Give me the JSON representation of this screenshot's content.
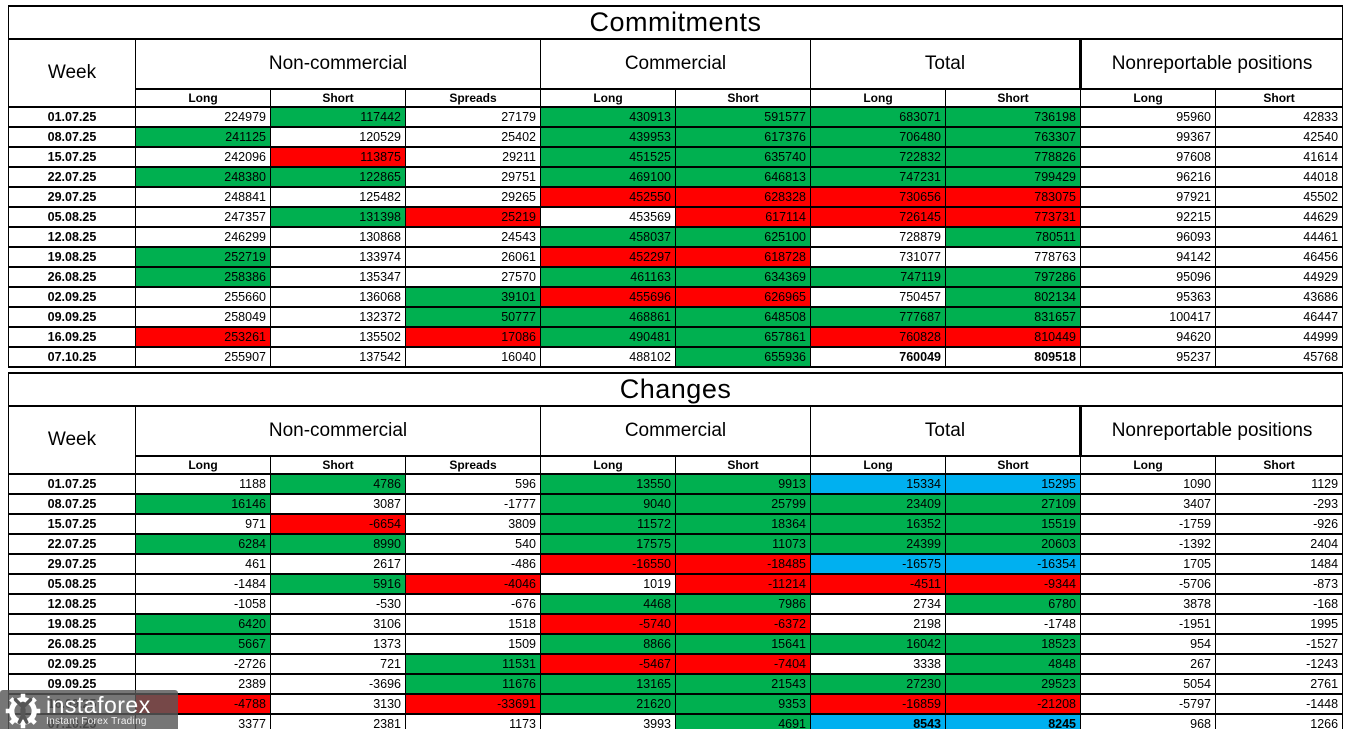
{
  "colors": {
    "green": "#00B050",
    "red": "#FF0000",
    "blue": "#00B0F0",
    "grid": "#000000",
    "watermark_bg": "rgba(88,88,88,0.82)"
  },
  "headers": {
    "week": "Week",
    "groups": [
      {
        "label": "Non-commercial",
        "span": 3
      },
      {
        "label": "Commercial",
        "span": 2
      },
      {
        "label": "Total",
        "span": 2
      },
      {
        "label": "Nonreportable positions",
        "span": 2
      }
    ],
    "sub": [
      "Long",
      "Short",
      "Spreads",
      "Long",
      "Short",
      "Long",
      "Short",
      "Long",
      "Short"
    ]
  },
  "watermark": {
    "brand": "instaforex",
    "tagline": "Instant Forex Trading"
  },
  "chart_data": [
    {
      "type": "table",
      "title": "Commitments",
      "columns": [
        "Week",
        "Non-commercial Long",
        "Non-commercial Short",
        "Non-commercial Spreads",
        "Commercial Long",
        "Commercial Short",
        "Total Long",
        "Total Short",
        "Nonreportable Long",
        "Nonreportable Short"
      ],
      "cell_color_legend": {
        "w": "white",
        "g": "green",
        "r": "red",
        "b": "blue"
      },
      "rows": [
        {
          "week": "01.07.25",
          "cells": [
            [
              224979,
              "w"
            ],
            [
              117442,
              "g"
            ],
            [
              27179,
              "w"
            ],
            [
              430913,
              "g"
            ],
            [
              591577,
              "g"
            ],
            [
              683071,
              "g"
            ],
            [
              736198,
              "g"
            ],
            [
              95960,
              "w"
            ],
            [
              42833,
              "w"
            ]
          ]
        },
        {
          "week": "08.07.25",
          "cells": [
            [
              241125,
              "g"
            ],
            [
              120529,
              "w"
            ],
            [
              25402,
              "w"
            ],
            [
              439953,
              "g"
            ],
            [
              617376,
              "g"
            ],
            [
              706480,
              "g"
            ],
            [
              763307,
              "g"
            ],
            [
              99367,
              "w"
            ],
            [
              42540,
              "w"
            ]
          ]
        },
        {
          "week": "15.07.25",
          "cells": [
            [
              242096,
              "w"
            ],
            [
              113875,
              "r"
            ],
            [
              29211,
              "w"
            ],
            [
              451525,
              "g"
            ],
            [
              635740,
              "g"
            ],
            [
              722832,
              "g"
            ],
            [
              778826,
              "g"
            ],
            [
              97608,
              "w"
            ],
            [
              41614,
              "w"
            ]
          ]
        },
        {
          "week": "22.07.25",
          "cells": [
            [
              248380,
              "g"
            ],
            [
              122865,
              "g"
            ],
            [
              29751,
              "w"
            ],
            [
              469100,
              "g"
            ],
            [
              646813,
              "g"
            ],
            [
              747231,
              "g"
            ],
            [
              799429,
              "g"
            ],
            [
              96216,
              "w"
            ],
            [
              44018,
              "w"
            ]
          ]
        },
        {
          "week": "29.07.25",
          "cells": [
            [
              248841,
              "w"
            ],
            [
              125482,
              "w"
            ],
            [
              29265,
              "w"
            ],
            [
              452550,
              "r"
            ],
            [
              628328,
              "r"
            ],
            [
              730656,
              "r"
            ],
            [
              783075,
              "r"
            ],
            [
              97921,
              "w"
            ],
            [
              45502,
              "w"
            ]
          ]
        },
        {
          "week": "05.08.25",
          "cells": [
            [
              247357,
              "w"
            ],
            [
              131398,
              "g"
            ],
            [
              25219,
              "r"
            ],
            [
              453569,
              "w"
            ],
            [
              617114,
              "r"
            ],
            [
              726145,
              "r"
            ],
            [
              773731,
              "r"
            ],
            [
              92215,
              "w"
            ],
            [
              44629,
              "w"
            ]
          ]
        },
        {
          "week": "12.08.25",
          "cells": [
            [
              246299,
              "w"
            ],
            [
              130868,
              "w"
            ],
            [
              24543,
              "w"
            ],
            [
              458037,
              "g"
            ],
            [
              625100,
              "g"
            ],
            [
              728879,
              "w"
            ],
            [
              780511,
              "g"
            ],
            [
              96093,
              "w"
            ],
            [
              44461,
              "w"
            ]
          ]
        },
        {
          "week": "19.08.25",
          "cells": [
            [
              252719,
              "g"
            ],
            [
              133974,
              "w"
            ],
            [
              26061,
              "w"
            ],
            [
              452297,
              "r"
            ],
            [
              618728,
              "r"
            ],
            [
              731077,
              "w"
            ],
            [
              778763,
              "w"
            ],
            [
              94142,
              "w"
            ],
            [
              46456,
              "w"
            ]
          ]
        },
        {
          "week": "26.08.25",
          "cells": [
            [
              258386,
              "g"
            ],
            [
              135347,
              "w"
            ],
            [
              27570,
              "w"
            ],
            [
              461163,
              "g"
            ],
            [
              634369,
              "g"
            ],
            [
              747119,
              "g"
            ],
            [
              797286,
              "g"
            ],
            [
              95096,
              "w"
            ],
            [
              44929,
              "w"
            ]
          ]
        },
        {
          "week": "02.09.25",
          "cells": [
            [
              255660,
              "w"
            ],
            [
              136068,
              "w"
            ],
            [
              39101,
              "g"
            ],
            [
              455696,
              "r"
            ],
            [
              626965,
              "r"
            ],
            [
              750457,
              "w"
            ],
            [
              802134,
              "g"
            ],
            [
              95363,
              "w"
            ],
            [
              43686,
              "w"
            ]
          ]
        },
        {
          "week": "09.09.25",
          "cells": [
            [
              258049,
              "w"
            ],
            [
              132372,
              "w"
            ],
            [
              50777,
              "g"
            ],
            [
              468861,
              "g"
            ],
            [
              648508,
              "g"
            ],
            [
              777687,
              "g"
            ],
            [
              831657,
              "g"
            ],
            [
              100417,
              "w"
            ],
            [
              46447,
              "w"
            ]
          ]
        },
        {
          "week": "16.09.25",
          "cells": [
            [
              253261,
              "r"
            ],
            [
              135502,
              "w"
            ],
            [
              17086,
              "r"
            ],
            [
              490481,
              "g"
            ],
            [
              657861,
              "g"
            ],
            [
              760828,
              "r"
            ],
            [
              810449,
              "r"
            ],
            [
              94620,
              "w"
            ],
            [
              44999,
              "w"
            ]
          ]
        },
        {
          "week": "07.10.25",
          "cells": [
            [
              255907,
              "w"
            ],
            [
              137542,
              "w"
            ],
            [
              16040,
              "w"
            ],
            [
              488102,
              "w"
            ],
            [
              655936,
              "g"
            ],
            [
              760049,
              "w",
              1
            ],
            [
              809518,
              "w",
              1
            ],
            [
              95237,
              "w"
            ],
            [
              45768,
              "w"
            ]
          ]
        }
      ]
    },
    {
      "type": "table",
      "title": "Changes",
      "columns": [
        "Week",
        "Non-commercial Long",
        "Non-commercial Short",
        "Non-commercial Spreads",
        "Commercial Long",
        "Commercial Short",
        "Total Long",
        "Total Short",
        "Nonreportable Long",
        "Nonreportable Short"
      ],
      "cell_color_legend": {
        "w": "white",
        "g": "green",
        "r": "red",
        "b": "blue"
      },
      "rows": [
        {
          "week": "01.07.25",
          "cells": [
            [
              1188,
              "w"
            ],
            [
              4786,
              "g"
            ],
            [
              596,
              "w"
            ],
            [
              13550,
              "g"
            ],
            [
              9913,
              "g"
            ],
            [
              15334,
              "b"
            ],
            [
              15295,
              "b"
            ],
            [
              1090,
              "w"
            ],
            [
              1129,
              "w"
            ]
          ]
        },
        {
          "week": "08.07.25",
          "cells": [
            [
              16146,
              "g"
            ],
            [
              3087,
              "w"
            ],
            [
              -1777,
              "w"
            ],
            [
              9040,
              "g"
            ],
            [
              25799,
              "g"
            ],
            [
              23409,
              "g"
            ],
            [
              27109,
              "g"
            ],
            [
              3407,
              "w"
            ],
            [
              -293,
              "w"
            ]
          ]
        },
        {
          "week": "15.07.25",
          "cells": [
            [
              971,
              "w"
            ],
            [
              -6654,
              "r"
            ],
            [
              3809,
              "w"
            ],
            [
              11572,
              "g"
            ],
            [
              18364,
              "g"
            ],
            [
              16352,
              "g"
            ],
            [
              15519,
              "g"
            ],
            [
              -1759,
              "w"
            ],
            [
              -926,
              "w"
            ]
          ]
        },
        {
          "week": "22.07.25",
          "cells": [
            [
              6284,
              "g"
            ],
            [
              8990,
              "g"
            ],
            [
              540,
              "w"
            ],
            [
              17575,
              "g"
            ],
            [
              11073,
              "g"
            ],
            [
              24399,
              "g"
            ],
            [
              20603,
              "g"
            ],
            [
              -1392,
              "w"
            ],
            [
              2404,
              "w"
            ]
          ]
        },
        {
          "week": "29.07.25",
          "cells": [
            [
              461,
              "w"
            ],
            [
              2617,
              "w"
            ],
            [
              -486,
              "w"
            ],
            [
              -16550,
              "r"
            ],
            [
              -18485,
              "r"
            ],
            [
              -16575,
              "b"
            ],
            [
              -16354,
              "b"
            ],
            [
              1705,
              "w"
            ],
            [
              1484,
              "w"
            ]
          ]
        },
        {
          "week": "05.08.25",
          "cells": [
            [
              -1484,
              "w"
            ],
            [
              5916,
              "g"
            ],
            [
              -4046,
              "r"
            ],
            [
              1019,
              "w"
            ],
            [
              -11214,
              "r"
            ],
            [
              -4511,
              "r"
            ],
            [
              -9344,
              "r"
            ],
            [
              -5706,
              "w"
            ],
            [
              -873,
              "w"
            ]
          ]
        },
        {
          "week": "12.08.25",
          "cells": [
            [
              -1058,
              "w"
            ],
            [
              -530,
              "w"
            ],
            [
              -676,
              "w"
            ],
            [
              4468,
              "g"
            ],
            [
              7986,
              "g"
            ],
            [
              2734,
              "w"
            ],
            [
              6780,
              "g"
            ],
            [
              3878,
              "w"
            ],
            [
              -168,
              "w"
            ]
          ]
        },
        {
          "week": "19.08.25",
          "cells": [
            [
              6420,
              "g"
            ],
            [
              3106,
              "w"
            ],
            [
              1518,
              "w"
            ],
            [
              -5740,
              "r"
            ],
            [
              -6372,
              "r"
            ],
            [
              2198,
              "w"
            ],
            [
              -1748,
              "w"
            ],
            [
              -1951,
              "w"
            ],
            [
              1995,
              "w"
            ]
          ]
        },
        {
          "week": "26.08.25",
          "cells": [
            [
              5667,
              "g"
            ],
            [
              1373,
              "w"
            ],
            [
              1509,
              "w"
            ],
            [
              8866,
              "g"
            ],
            [
              15641,
              "g"
            ],
            [
              16042,
              "g"
            ],
            [
              18523,
              "g"
            ],
            [
              954,
              "w"
            ],
            [
              -1527,
              "w"
            ]
          ]
        },
        {
          "week": "02.09.25",
          "cells": [
            [
              -2726,
              "w"
            ],
            [
              721,
              "w"
            ],
            [
              11531,
              "g"
            ],
            [
              -5467,
              "r"
            ],
            [
              -7404,
              "r"
            ],
            [
              3338,
              "w"
            ],
            [
              4848,
              "g"
            ],
            [
              267,
              "w"
            ],
            [
              -1243,
              "w"
            ]
          ]
        },
        {
          "week": "09.09.25",
          "cells": [
            [
              2389,
              "w"
            ],
            [
              -3696,
              "w"
            ],
            [
              11676,
              "g"
            ],
            [
              13165,
              "g"
            ],
            [
              21543,
              "g"
            ],
            [
              27230,
              "g"
            ],
            [
              29523,
              "g"
            ],
            [
              5054,
              "w"
            ],
            [
              2761,
              "w"
            ]
          ]
        },
        {
          "week": "16.09.25",
          "cells": [
            [
              -4788,
              "r"
            ],
            [
              3130,
              "w"
            ],
            [
              -33691,
              "r"
            ],
            [
              21620,
              "g"
            ],
            [
              9353,
              "g"
            ],
            [
              -16859,
              "r"
            ],
            [
              -21208,
              "r"
            ],
            [
              -5797,
              "w"
            ],
            [
              -1448,
              "w"
            ]
          ]
        },
        {
          "week": "07.10.25",
          "cells": [
            [
              3377,
              "w"
            ],
            [
              2381,
              "w"
            ],
            [
              1173,
              "w"
            ],
            [
              3993,
              "w"
            ],
            [
              4691,
              "g"
            ],
            [
              8543,
              "b",
              1
            ],
            [
              8245,
              "b",
              1
            ],
            [
              968,
              "w"
            ],
            [
              1266,
              "w"
            ]
          ]
        }
      ]
    }
  ]
}
